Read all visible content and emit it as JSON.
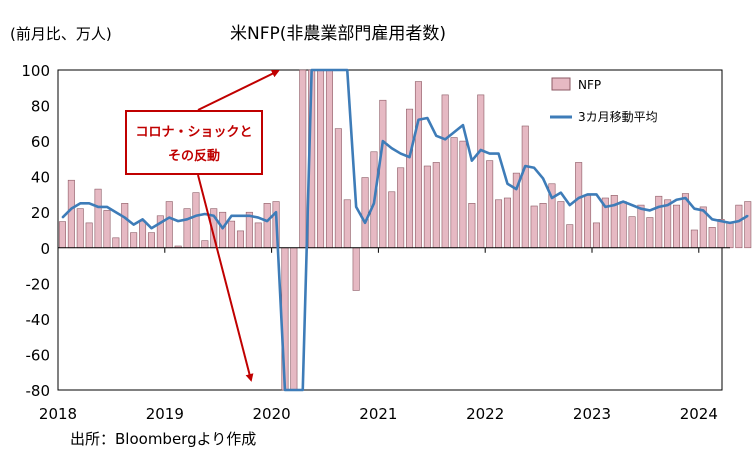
{
  "chart_data": {
    "type": "bar",
    "title": "米NFP(非農業部門雇用者数)",
    "unit_label": "(前月比、万人)",
    "source": "出所：Bloombergより作成",
    "annotation": [
      "コロナ・ショックと",
      "その反動"
    ],
    "ylim": [
      -80,
      100
    ],
    "yticks": [
      100,
      80,
      60,
      40,
      20,
      0,
      -20,
      -40,
      -60,
      -80
    ],
    "xticks": [
      {
        "label": "2018",
        "index": 0
      },
      {
        "label": "2019",
        "index": 12
      },
      {
        "label": "2020",
        "index": 24
      },
      {
        "label": "2021",
        "index": 36
      },
      {
        "label": "2022",
        "index": 48
      },
      {
        "label": "2023",
        "index": 60
      },
      {
        "label": "2024",
        "index": 72
      }
    ],
    "grid": false,
    "legend_position": "top-right",
    "colors": {
      "bar_fill": "#e6b9c3",
      "bar_stroke": "#8c5a64",
      "line": "#3e7cb8",
      "annotation": "#c00000"
    },
    "series": [
      {
        "name": "NFP",
        "kind": "bar",
        "values": [
          14.7,
          38.0,
          22.0,
          14.0,
          33.0,
          21.0,
          5.6,
          25.0,
          8.5,
          15.0,
          8.5,
          18.0,
          26.0,
          1.0,
          22.0,
          31.0,
          4.0,
          22.0,
          20.0,
          15.0,
          9.5,
          20.0,
          14.0,
          25.0,
          26.0,
          -80.0,
          -80.0,
          100.0,
          100.0,
          100.0,
          100.0,
          67.0,
          27.0,
          -24.0,
          39.5,
          54.0,
          83.0,
          31.5,
          45.0,
          78.0,
          93.5,
          46.0,
          48.0,
          86.0,
          62.0,
          60.0,
          25.0,
          86.0,
          49.0,
          27.0,
          28.0,
          42.0,
          68.5,
          23.5,
          25.0,
          36.0,
          26.0,
          13.0,
          48.0,
          29.5,
          14.0,
          28.0,
          29.5,
          26.0,
          17.5,
          24.0,
          17.0,
          29.0,
          27.0,
          24.0,
          30.5,
          10.0,
          23.0,
          11.5,
          16.0,
          14.0,
          24.0,
          26.0
        ]
      },
      {
        "name": "3カ月移動平均",
        "kind": "line",
        "values": [
          17.0,
          22.0,
          25.0,
          25.0,
          23.0,
          23.0,
          20.0,
          17.0,
          13.0,
          16.0,
          11.0,
          14.0,
          17.0,
          15.0,
          16.0,
          18.0,
          19.0,
          18.0,
          11.0,
          18.0,
          18.0,
          18.0,
          17.0,
          15.0,
          20.0,
          -80.0,
          -80.0,
          -80.0,
          100.0,
          100.0,
          100.0,
          100.0,
          100.0,
          23.0,
          14.0,
          25.0,
          60.0,
          56.0,
          53.0,
          51.0,
          72.0,
          73.0,
          63.0,
          61.0,
          65.0,
          69.0,
          49.0,
          55.0,
          53.0,
          53.0,
          36.0,
          33.0,
          46.0,
          45.0,
          39.0,
          28.0,
          31.0,
          24.0,
          28.0,
          30.0,
          30.0,
          23.0,
          24.0,
          26.0,
          24.0,
          22.0,
          21.0,
          23.0,
          24.0,
          27.0,
          28.0,
          22.0,
          21.0,
          16.0,
          15.0,
          14.0,
          15.0,
          18.0
        ]
      }
    ]
  }
}
